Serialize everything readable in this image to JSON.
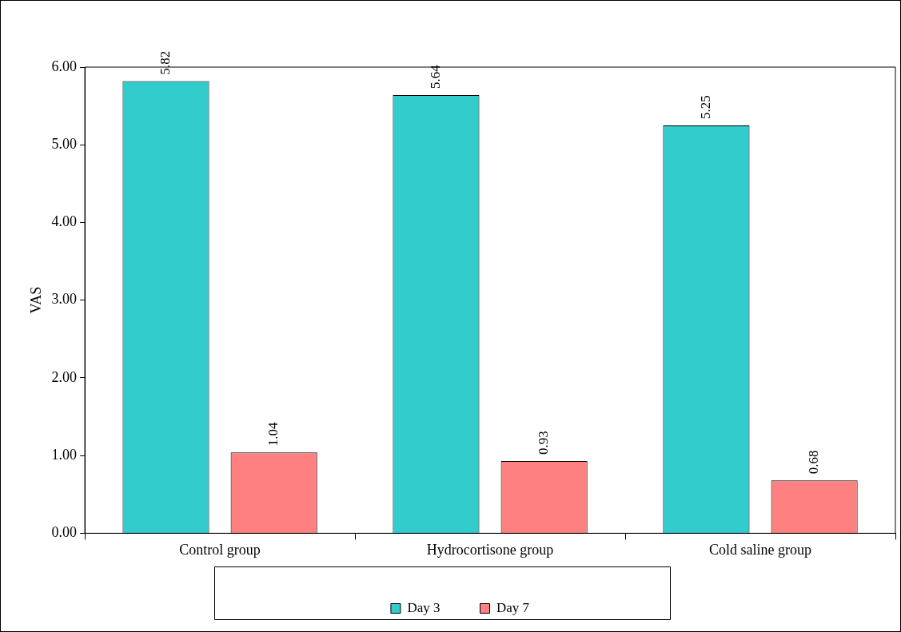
{
  "chart_data": {
    "type": "bar",
    "ylabel": "VAS",
    "categories": [
      "Control group",
      "Hydrocortisone group",
      "Cold saline group"
    ],
    "series": [
      {
        "name": "Day 3",
        "color": "#33cccc",
        "values": [
          5.82,
          5.64,
          5.25
        ]
      },
      {
        "name": "Day 7",
        "color": "#ff8080",
        "values": [
          1.04,
          0.93,
          0.68
        ]
      }
    ],
    "ylim": [
      0,
      6
    ],
    "yticks": [
      {
        "value": 0,
        "label": "0.00"
      },
      {
        "value": 1,
        "label": "1.00"
      },
      {
        "value": 2,
        "label": "2.00"
      },
      {
        "value": 3,
        "label": "3.00"
      },
      {
        "value": 4,
        "label": "4.00"
      },
      {
        "value": 5,
        "label": "5.00"
      },
      {
        "value": 6,
        "label": "6.00"
      }
    ],
    "grid": false,
    "legend": "bottom",
    "data_labels": true
  }
}
